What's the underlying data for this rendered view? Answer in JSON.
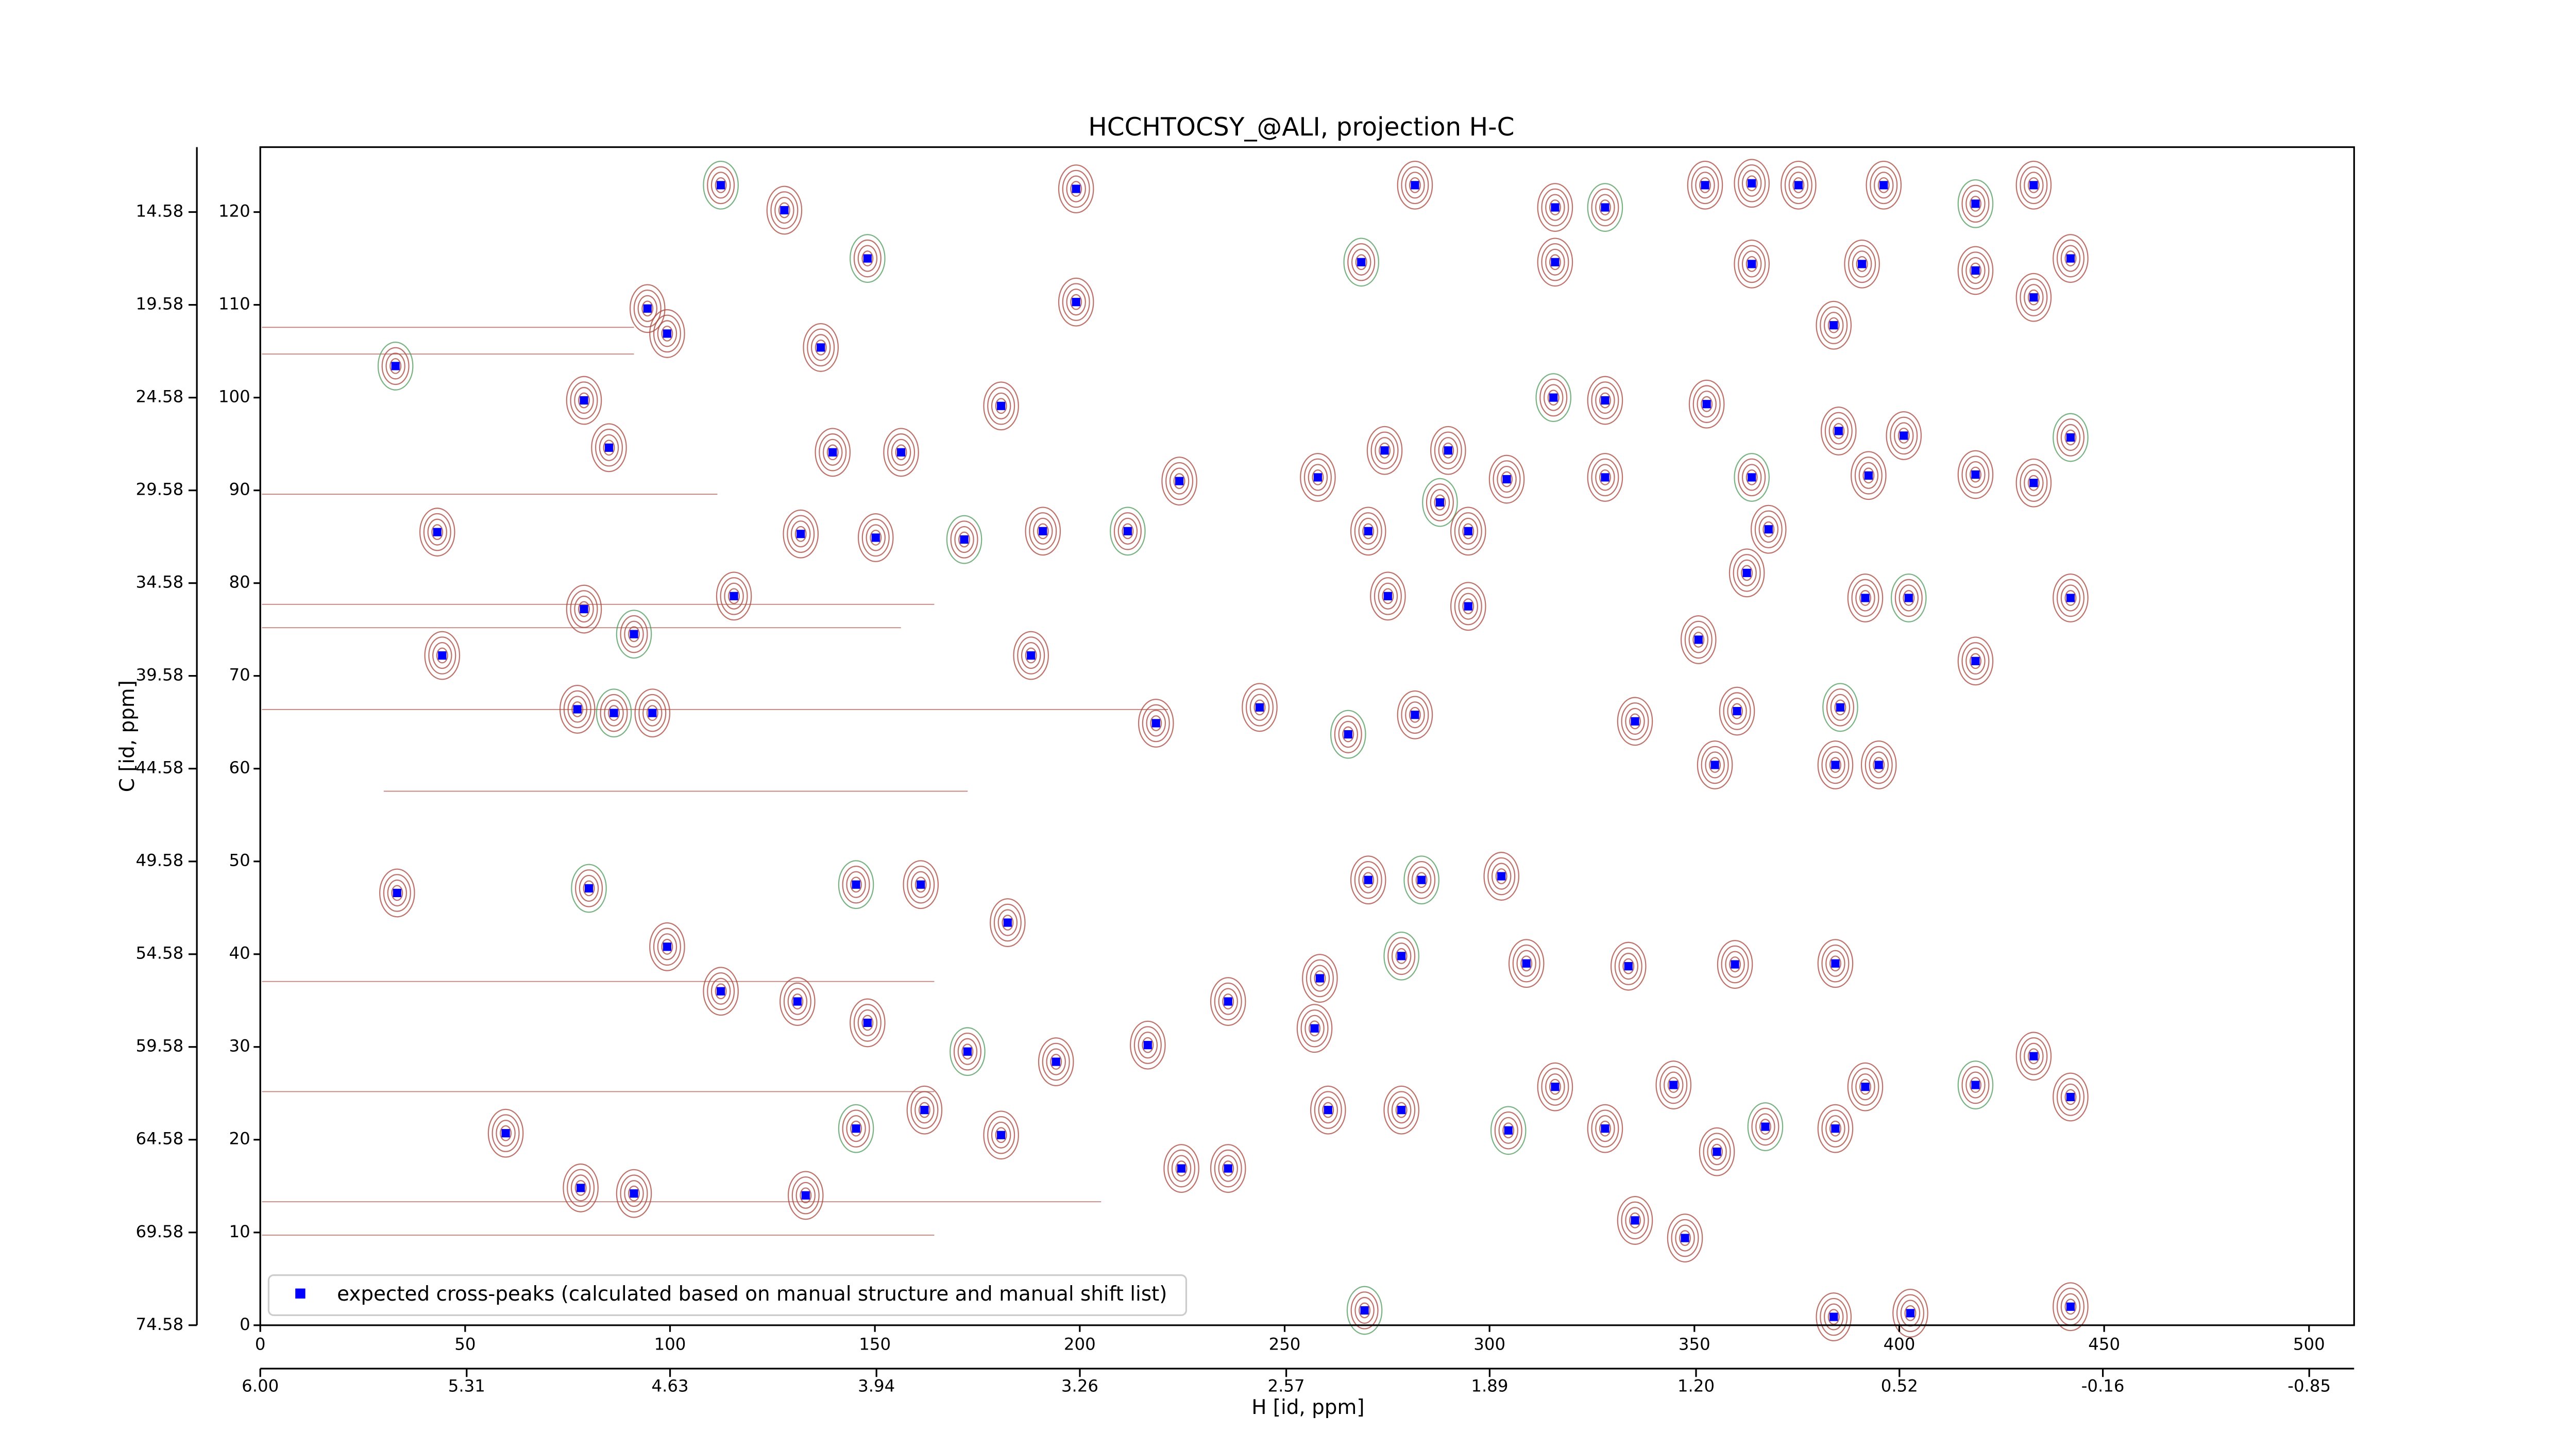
{
  "chart_data": {
    "type": "scatter",
    "title": "HCCHTOCSY_@ALI, projection H-C",
    "xlabel": "H [id, ppm]",
    "ylabel": "C [id, ppm]",
    "xlim": [
      0,
      511
    ],
    "ylim": [
      0,
      127
    ],
    "xticks": [
      0,
      50,
      100,
      150,
      200,
      250,
      300,
      350,
      400,
      450,
      500
    ],
    "yticks": [
      0,
      10,
      20,
      30,
      40,
      50,
      60,
      70,
      80,
      90,
      100,
      110,
      120
    ],
    "x2lim": [
      6.0,
      -1.0
    ],
    "x2ticks": [
      {
        "value": 6,
        "label": "6.00"
      },
      5.31,
      4.63,
      3.94,
      3.26,
      2.57,
      1.89,
      {
        "value": 1.2,
        "label": "1.20"
      },
      0.52,
      -0.16,
      -0.85
    ],
    "y2lim": [
      74.58,
      11.08
    ],
    "y2ticks": [
      74.58,
      69.58,
      64.58,
      59.58,
      54.58,
      49.58,
      44.58,
      39.58,
      34.58,
      29.58,
      24.58,
      19.58,
      14.58
    ],
    "legend": "lower left",
    "series": [
      {
        "name": "expected cross-peaks (calculated based on manual structure and manual shift list)",
        "color": "#0000ff",
        "marker": "square",
        "x": [
          33,
          44.4,
          33.4,
          43.2,
          59.9,
          112.4,
          199.1,
          199.1,
          281.8,
          316,
          328.2,
          352.6,
          364,
          375.4,
          396.2,
          418.6,
          432.8,
          441.8,
          418.6,
          432.8,
          268.7,
          316,
          364,
          390.9,
          384,
          315.6,
          328.2,
          353,
          385.2,
          401.1,
          441.8,
          418.6,
          432.8,
          304.2,
          328.2,
          364,
          392.5,
          368.1,
          362.8,
          391.7,
          402.3,
          441.8,
          418.6,
          351,
          360.4,
          385.6,
          384.4,
          395,
          335.5,
          355,
          287.9,
          270.4,
          294.8,
          294.8,
          275.2,
          265.5,
          281.8,
          218.6,
          243.9,
          191,
          211.7,
          224.3,
          258.1,
          274.4,
          289.9,
          171.8,
          188.1,
          180.8,
          156.4,
          139.7,
          80.2,
          99.3,
          112.4,
          131.1,
          148.2,
          172.6,
          194.2,
          216.6,
          236.2,
          258.6,
          278.5,
          309,
          333.9,
          359.9,
          384.4,
          418.6,
          432.8,
          441.8,
          391.7,
          384.4,
          367.3,
          355.5,
          344.9,
          328.2,
          316,
          304.6,
          278.5,
          260.6,
          257.3,
          270.4,
          283.4,
          302.9,
          224.8,
          236.2,
          182.4,
          145.4,
          161.2,
          78.2,
          91.2,
          133.1,
          145.4,
          162.1,
          180.8,
          335.5,
          347.7,
          269.5,
          384,
          402.7,
          441.8,
          77.4,
          86.3,
          95.7,
          94.5,
          99.3,
          127.9,
          148.2,
          136.8,
          79,
          85.1,
          79,
          91.2,
          115.6,
          131.9,
          150.2
        ],
        "y": [
          103.4,
          72.2,
          46.6,
          85.5,
          20.7,
          122.9,
          122.5,
          110.3,
          122.9,
          120.5,
          120.5,
          122.9,
          123.1,
          122.9,
          122.9,
          120.9,
          122.9,
          115,
          113.7,
          110.8,
          114.6,
          114.6,
          114.4,
          114.4,
          107.8,
          100,
          99.7,
          99.3,
          96.4,
          95.9,
          95.7,
          91.7,
          90.8,
          91.2,
          91.4,
          91.4,
          91.6,
          85.8,
          81.1,
          78.4,
          78.4,
          78.4,
          71.6,
          73.9,
          66.2,
          66.6,
          60.4,
          60.4,
          65.1,
          60.4,
          88.7,
          85.6,
          85.6,
          77.5,
          78.6,
          63.7,
          65.8,
          64.9,
          66.6,
          85.6,
          85.6,
          91,
          91.4,
          94.3,
          94.3,
          84.7,
          72.2,
          99.1,
          94.1,
          94.1,
          47.1,
          40.8,
          36,
          34.9,
          32.6,
          29.5,
          28.4,
          30.2,
          34.9,
          37.4,
          39.8,
          39,
          38.7,
          38.9,
          39,
          25.9,
          29,
          24.6,
          25.7,
          21.2,
          21.4,
          18.7,
          25.9,
          21.2,
          25.7,
          21,
          23.2,
          23.2,
          32,
          48,
          48,
          48.4,
          16.9,
          16.9,
          43.4,
          47.5,
          47.5,
          14.8,
          14.2,
          14,
          21.2,
          23.2,
          20.5,
          11.3,
          9.4,
          1.6,
          0.9,
          1.3,
          2,
          66.4,
          66,
          66,
          109.6,
          106.9,
          120.2,
          115,
          105.4,
          99.7,
          94.6,
          77.2,
          74.5,
          78.6,
          85.3,
          84.9
        ]
      }
    ]
  }
}
